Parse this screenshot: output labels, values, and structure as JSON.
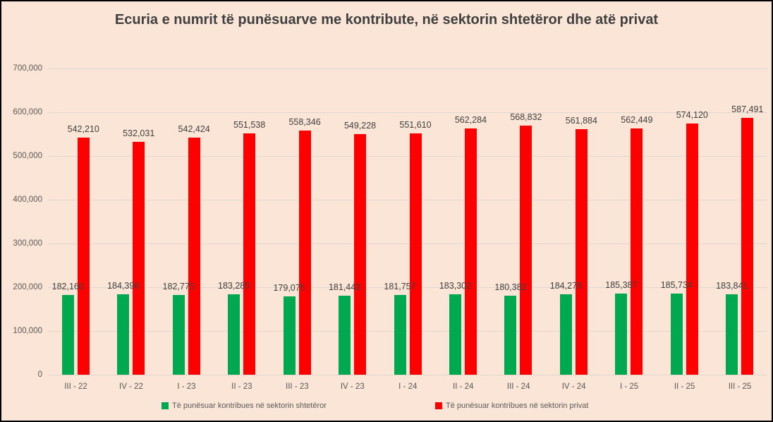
{
  "title": "Ecuria e numrit të punësuarve me kontribute, në sektorin shtetëror dhe atë privat",
  "colors": {
    "background": "#FBE5D6",
    "frame_border": "#000000",
    "gridline": "#DDD7CF",
    "title_text": "#404040",
    "axis_text": "#595959",
    "data_label_text": "#404040",
    "state_green": "#00A850",
    "private_red": "#FF0000"
  },
  "chart_data": {
    "type": "bar",
    "title": "Ecuria e numrit të punësuarve me kontribute, në sektorin shtetëror dhe atë privat",
    "categories": [
      "III - 22",
      "IV - 22",
      "I - 23",
      "II - 23",
      "III - 23",
      "IV - 23",
      "I - 24",
      "II - 24",
      "III - 24",
      "IV - 24",
      "I - 25",
      "II - 25",
      "III - 25"
    ],
    "series": [
      {
        "name": "Të punësuar kontribues në sektorin shtetëror",
        "color": "#00A850",
        "values": [
          182160,
          184396,
          182775,
          183285,
          179075,
          181443,
          181757,
          183302,
          180382,
          184278,
          185387,
          185734,
          183841
        ]
      },
      {
        "name": "Të punësuar kontribues në sektorin privat",
        "color": "#FF0000",
        "values": [
          542210,
          532031,
          542424,
          551538,
          558346,
          549228,
          551610,
          562284,
          568832,
          561884,
          562449,
          574120,
          587491
        ]
      }
    ],
    "xlabel": "",
    "ylabel": "",
    "ylim": [
      0,
      700000
    ],
    "y_tick_step": 100000,
    "y_tick_labels": [
      "0",
      "100,000",
      "200,000",
      "300,000",
      "400,000",
      "500,000",
      "600,000",
      "700,000"
    ],
    "grid": true,
    "data_labels": true,
    "legend_position": "bottom"
  }
}
